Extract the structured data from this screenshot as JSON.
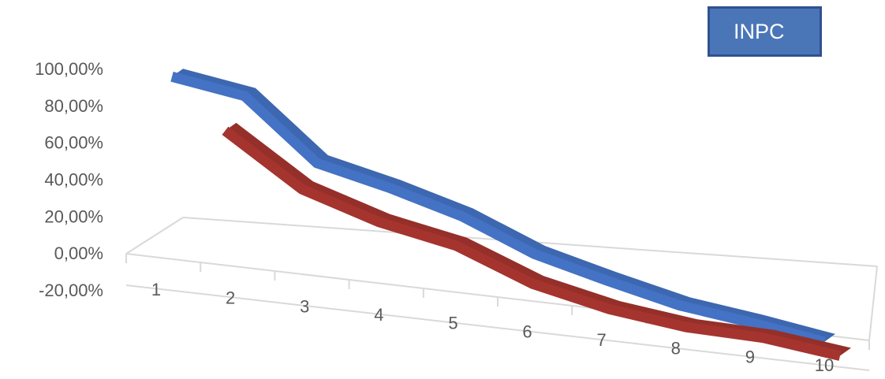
{
  "chart_data": {
    "type": "line",
    "categories": [
      "1",
      "2",
      "3",
      "4",
      "5",
      "6",
      "7",
      "8",
      "9",
      "10"
    ],
    "series": [
      {
        "name": "",
        "color": "#4472c4",
        "values": [
          0.84,
          0.77,
          0.44,
          0.34,
          0.22,
          0.05,
          -0.06,
          -0.16,
          -0.22,
          -0.29
        ]
      },
      {
        "name": "",
        "color": "#a5342f",
        "values": [
          null,
          0.7,
          0.42,
          0.28,
          0.19,
          0.02,
          -0.08,
          -0.14,
          -0.16,
          -0.22
        ]
      }
    ],
    "ylim": [
      -0.2,
      1.0
    ],
    "y_ticks": [
      "-20,00%",
      "0,00%",
      "20,00%",
      "40,00%",
      "60,00%",
      "80,00%",
      "100,00%"
    ],
    "grid": false,
    "perspective": "3d",
    "legend": {
      "label": "INPC",
      "placement": "top-right"
    }
  }
}
